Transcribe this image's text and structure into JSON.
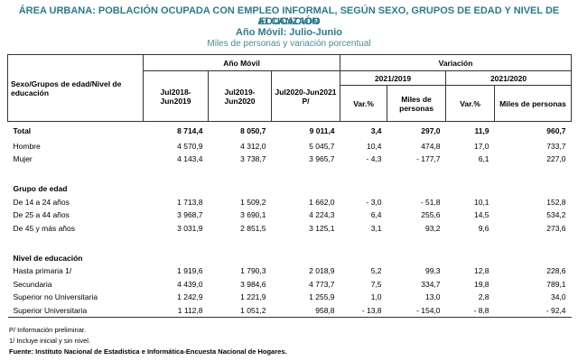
{
  "header": {
    "title_line1": "ÁREA URBANA: POBLACIÓN OCUPADA CON EMPLEO INFORMAL, SEGÚN SEXO, GRUPOS DE EDAD Y NIVEL DE EDUCACIÓN",
    "title_line2": "ALCANZADO",
    "period": "Año Móvil: Julio-Junio",
    "units": "Miles de personas y variación porcentual"
  },
  "table": {
    "corner": "Sexo/Grupos de edad/Nivel de educación",
    "group1": "Año Móvil",
    "group2": "Variación",
    "sub1": "2021/2019",
    "sub2": "2021/2020",
    "columns": [
      "Jul2018-Jun2019",
      "Jul2019-Jun2020",
      "Jul2020-Jun2021 P/",
      "Var.%",
      "Miles de personas",
      "Var.%",
      "Miles de personas"
    ],
    "groups": [
      {
        "rows": [
          {
            "label": "Total",
            "cells": [
              "8 714,4",
              "8 050,7",
              "9 011,4",
              "3,4",
              "297,0",
              "11,9",
              "960,7"
            ]
          },
          {
            "label": "Hombre",
            "cells": [
              "4 570,9",
              "4 312,0",
              "5 045,7",
              "10,4",
              "474,8",
              "17,0",
              "733,7"
            ]
          },
          {
            "label": "Mujer",
            "cells": [
              "4 143,4",
              "3 738,7",
              "3 965,7",
              "- 4,3",
              "- 177,7",
              "6,1",
              "227,0"
            ]
          }
        ]
      },
      {
        "title": "Grupo de edad",
        "rows": [
          {
            "label": "De 14 a 24 años",
            "cells": [
              "1 713,8",
              "1 509,2",
              "1 662,0",
              "- 3,0",
              "- 51,8",
              "10,1",
              "152,8"
            ]
          },
          {
            "label": "De 25 a 44 años",
            "cells": [
              "3 968,7",
              "3 690,1",
              "4 224,3",
              "6,4",
              "255,6",
              "14,5",
              "534,2"
            ]
          },
          {
            "label": "De 45 y más años",
            "cells": [
              "3 031,9",
              "2 851,5",
              "3 125,1",
              "3,1",
              "93,2",
              "9,6",
              "273,6"
            ]
          }
        ]
      },
      {
        "title": "Nivel de educación",
        "rows": [
          {
            "label": "Hasta primaria 1/",
            "cells": [
              "1 919,6",
              "1 790,3",
              "2 018,9",
              "5,2",
              "99,3",
              "12,8",
              "228,6"
            ]
          },
          {
            "label": "Secundaria",
            "cells": [
              "4 439,0",
              "3 984,6",
              "4 773,7",
              "7,5",
              "334,7",
              "19,8",
              "789,1"
            ]
          },
          {
            "label": "Superior no Universitaria",
            "cells": [
              "1 242,9",
              "1 221,9",
              "1 255,9",
              "1,0",
              "13,0",
              "2,8",
              "34,0"
            ]
          },
          {
            "label": "Superior Universitaria",
            "cells": [
              "1 112,8",
              "1 051,2",
              "958,8",
              "- 13,8",
              "- 154,0",
              "- 8,8",
              "- 92,4"
            ]
          }
        ]
      }
    ]
  },
  "notes": [
    "P/ Información preliminar.",
    "1/ Incluye inicial y sin nivel."
  ],
  "source": "Fuente: Instituto Nacional de Estadística e Informática-Encuesta Nacional de Hogares."
}
